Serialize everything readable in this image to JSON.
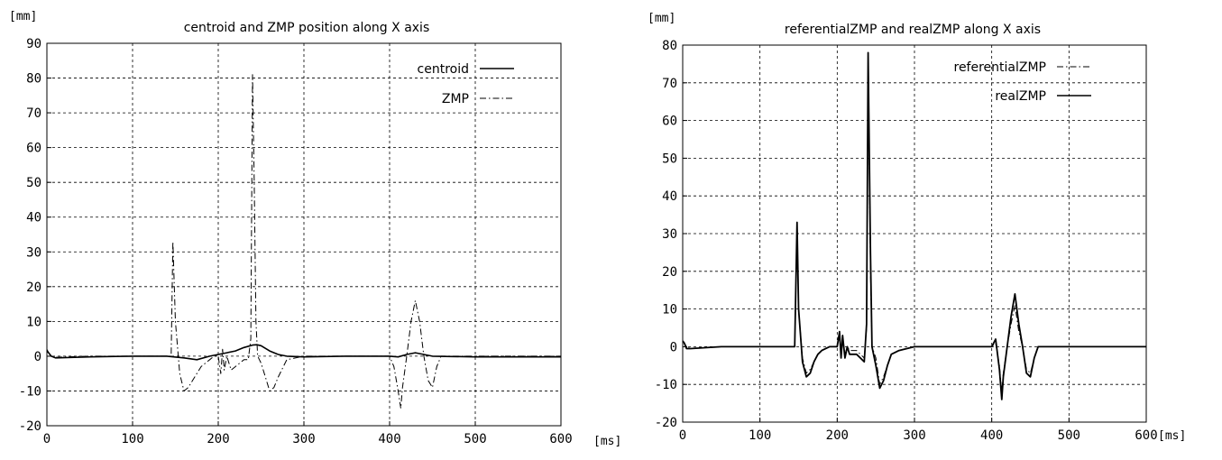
{
  "chart_data": [
    {
      "type": "line",
      "title": "centroid and ZMP position along X axis",
      "ylabel": "[mm]",
      "xlabel": "[ms]",
      "xlim": [
        0,
        600
      ],
      "ylim": [
        -20,
        90
      ],
      "xticks": [
        0,
        100,
        200,
        300,
        400,
        500,
        600
      ],
      "yticks": [
        -20,
        -10,
        0,
        10,
        20,
        30,
        40,
        50,
        60,
        70,
        80,
        90
      ],
      "grid": true,
      "legend": "top-right",
      "series": [
        {
          "name": "centroid",
          "style": "solid",
          "x": [
            0,
            2,
            5,
            10,
            50,
            100,
            140,
            160,
            175,
            190,
            200,
            210,
            220,
            230,
            240,
            245,
            250,
            260,
            270,
            280,
            300,
            350,
            400,
            410,
            420,
            430,
            440,
            450,
            500,
            550,
            600
          ],
          "y": [
            1.5,
            1,
            0,
            -0.5,
            -0.2,
            0,
            0,
            -0.5,
            -1,
            0,
            0.5,
            1,
            1.5,
            2.5,
            3.2,
            3.3,
            3,
            1.5,
            0.5,
            0,
            -0.2,
            0,
            0,
            -0.2,
            0.5,
            1,
            0.5,
            0,
            -0.2,
            -0.2,
            -0.2
          ]
        },
        {
          "name": "ZMP",
          "style": "dashdot",
          "x": [
            0,
            2,
            5,
            10,
            50,
            100,
            140,
            145,
            147,
            150,
            155,
            160,
            165,
            170,
            180,
            190,
            195,
            200,
            203,
            205,
            207,
            210,
            215,
            220,
            225,
            230,
            235,
            238,
            240,
            242,
            244,
            246,
            250,
            255,
            260,
            265,
            270,
            280,
            300,
            350,
            400,
            405,
            410,
            413,
            415,
            420,
            425,
            430,
            435,
            440,
            445,
            450,
            455,
            460,
            470,
            500,
            550,
            600
          ],
          "y": [
            2,
            1,
            0,
            -0.3,
            0,
            0,
            0,
            0,
            33,
            10,
            -5,
            -10,
            -9,
            -7,
            -3,
            -1,
            0,
            0,
            -5,
            2,
            -4,
            0,
            -4,
            -3,
            -2,
            -1,
            -1,
            5,
            81,
            50,
            10,
            0,
            -2,
            -6,
            -10,
            -9,
            -6,
            -1,
            0,
            0,
            0,
            -3,
            -10,
            -15,
            -9,
            0,
            10,
            16,
            10,
            0,
            -7,
            -9,
            -3,
            0,
            0,
            0,
            0,
            0
          ]
        }
      ]
    },
    {
      "type": "line",
      "title": "referentialZMP and realZMP along X axis",
      "ylabel": "[mm]",
      "xlabel": "[ms]",
      "xlim": [
        0,
        600
      ],
      "ylim": [
        -20,
        80
      ],
      "xticks": [
        0,
        100,
        200,
        300,
        400,
        500,
        600
      ],
      "yticks": [
        -20,
        -10,
        0,
        10,
        20,
        30,
        40,
        50,
        60,
        70,
        80
      ],
      "grid": true,
      "legend": "top-right",
      "series": [
        {
          "name": "referentialZMP",
          "style": "dashdot",
          "x": [
            0,
            2,
            5,
            10,
            50,
            100,
            145,
            148,
            150,
            155,
            160,
            165,
            170,
            175,
            180,
            190,
            200,
            203,
            205,
            207,
            210,
            213,
            216,
            220,
            225,
            230,
            235,
            238,
            240,
            243,
            245,
            250,
            255,
            260,
            265,
            270,
            280,
            300,
            350,
            400,
            405,
            410,
            413,
            415,
            420,
            425,
            430,
            435,
            440,
            445,
            450,
            455,
            460,
            500,
            550,
            600
          ],
          "y": [
            1.5,
            1,
            0,
            -0.5,
            0,
            0,
            0,
            32,
            10,
            -3,
            -7,
            -6,
            -4,
            -2,
            -1,
            0,
            0,
            3,
            -3,
            2,
            -2,
            0,
            -1,
            -1,
            -1,
            -2,
            -3,
            5,
            75,
            20,
            0,
            -3,
            -10,
            -8,
            -5,
            -2,
            -1,
            0,
            0,
            0,
            1,
            -5,
            -12,
            -7,
            0,
            6,
            11,
            4,
            0,
            -6,
            -7,
            -3,
            0,
            0,
            0,
            0
          ]
        },
        {
          "name": "realZMP",
          "style": "solid",
          "x": [
            0,
            2,
            5,
            10,
            50,
            100,
            145,
            148,
            150,
            155,
            160,
            165,
            170,
            175,
            180,
            190,
            200,
            203,
            205,
            207,
            210,
            213,
            216,
            220,
            225,
            230,
            235,
            238,
            240,
            243,
            245,
            250,
            255,
            260,
            265,
            270,
            280,
            300,
            350,
            400,
            405,
            410,
            413,
            415,
            420,
            425,
            430,
            435,
            440,
            445,
            450,
            455,
            460,
            500,
            550,
            600
          ],
          "y": [
            1.5,
            1,
            -0.5,
            -0.5,
            0,
            0,
            0,
            33,
            10,
            -4,
            -8,
            -7,
            -4,
            -2,
            -1,
            0,
            0,
            4,
            -3,
            3,
            -3,
            0,
            -2,
            -2,
            -2,
            -3,
            -4,
            6,
            78,
            25,
            0,
            -5,
            -11,
            -9,
            -5,
            -2,
            -1,
            0,
            0,
            0,
            2,
            -6,
            -14,
            -8,
            0,
            8,
            14,
            6,
            0,
            -7,
            -8,
            -3,
            0,
            0,
            0,
            0
          ]
        }
      ]
    }
  ]
}
